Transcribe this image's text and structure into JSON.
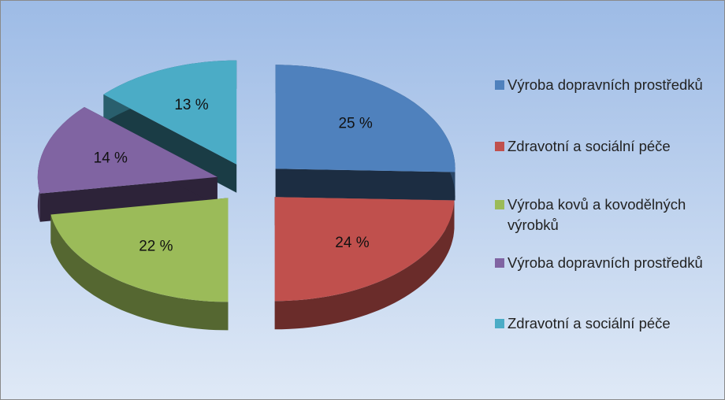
{
  "chart_data": {
    "type": "pie",
    "categories": [
      "Výroba dopravních prostředků",
      "Zdravotní a sociální péče",
      "Výroba kovů a kovodělných výrobků",
      "Výroba dopravních prostředků",
      "Zdravotní a sociální péče"
    ],
    "values": [
      25,
      24,
      22,
      14,
      13
    ],
    "value_labels": [
      "25 %",
      "24 %",
      "22 %",
      "14 %",
      "13 %"
    ],
    "colors": [
      "#4f81bd",
      "#c0504d",
      "#9bbb59",
      "#8064a2",
      "#4bacc6"
    ],
    "legend": "right"
  }
}
